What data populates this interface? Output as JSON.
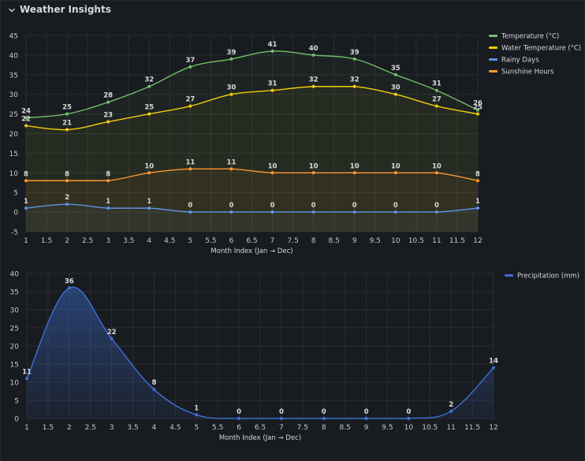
{
  "header": {
    "title": "Weather Insights",
    "collapse_icon": "chevron-down-icon"
  },
  "colors": {
    "temperature": "#73bf69",
    "water_temperature": "#f2cc0c",
    "rainy_days": "#5794f2",
    "sunshine_hours": "#ff9830",
    "precipitation": "#3d71d9",
    "grid": "#2a2d33",
    "tick": "#c7c8cc",
    "label": "#d8d9da"
  },
  "chart_data": [
    {
      "type": "line",
      "x": [
        1,
        2,
        3,
        4,
        5,
        6,
        7,
        8,
        9,
        10,
        11,
        12
      ],
      "xlabel": "Month Index (Jan → Dec)",
      "xlim": [
        1,
        12
      ],
      "ylim": [
        -5,
        45
      ],
      "yticks": [
        -5,
        0,
        5,
        10,
        15,
        20,
        25,
        30,
        35,
        40,
        45
      ],
      "xticks": [
        "1",
        "1.5",
        "2",
        "2.5",
        "3",
        "3.5",
        "4",
        "4.5",
        "5",
        "5.5",
        "6",
        "6.5",
        "7",
        "7.5",
        "8",
        "8.5",
        "9",
        "9.5",
        "10",
        "10.5",
        "11",
        "11.5",
        "12"
      ],
      "grid": true,
      "legend_position": "top-right",
      "series": [
        {
          "name": "Temperature (°C)",
          "color": "#73bf69",
          "values": [
            24,
            25,
            28,
            32,
            37,
            39,
            41,
            40,
            39,
            35,
            31,
            26
          ]
        },
        {
          "name": "Water Temperature (°C)",
          "color": "#f2cc0c",
          "values": [
            22,
            21,
            23,
            25,
            27,
            30,
            31,
            32,
            32,
            30,
            27,
            25
          ]
        },
        {
          "name": "Rainy Days",
          "color": "#5794f2",
          "values": [
            1,
            2,
            1,
            1,
            0,
            0,
            0,
            0,
            0,
            0,
            0,
            1
          ]
        },
        {
          "name": "Sunshine Hours",
          "color": "#ff9830",
          "values": [
            8,
            8,
            8,
            10,
            11,
            11,
            10,
            10,
            10,
            10,
            10,
            8
          ]
        }
      ]
    },
    {
      "type": "area",
      "x": [
        1,
        2,
        3,
        4,
        5,
        6,
        7,
        8,
        9,
        10,
        11,
        12
      ],
      "xlabel": "Month Index (Jan → Dec)",
      "xlim": [
        1,
        12
      ],
      "ylim": [
        0,
        40
      ],
      "yticks": [
        0,
        5,
        10,
        15,
        20,
        25,
        30,
        35,
        40
      ],
      "xticks": [
        "1",
        "1.5",
        "2",
        "2.5",
        "3",
        "3.5",
        "4",
        "4.5",
        "5",
        "5.5",
        "6",
        "6.5",
        "7",
        "7.5",
        "8",
        "8.5",
        "9",
        "9.5",
        "10",
        "10.5",
        "11",
        "11.5",
        "12"
      ],
      "grid": true,
      "legend_position": "top-right",
      "series": [
        {
          "name": "Precipitation (mm)",
          "color": "#3d71d9",
          "values": [
            11,
            36,
            22,
            8,
            1,
            0,
            0,
            0,
            0,
            0,
            2,
            14
          ]
        }
      ]
    }
  ]
}
